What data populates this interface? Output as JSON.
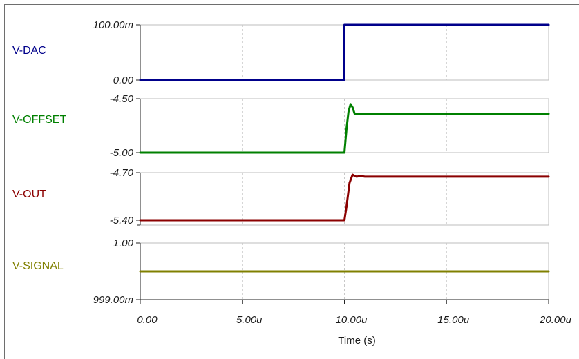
{
  "chart_data": {
    "type": "line",
    "xlabel": "Time (s)",
    "x_ticks": [
      "0.00",
      "5.00u",
      "10.00u",
      "15.00u",
      "20.00u"
    ],
    "xlim": [
      0,
      20
    ],
    "grid": true,
    "panels": [
      {
        "name": "V-DAC",
        "color": "#00008b",
        "y_ticks": [
          "100.00m",
          "0.00"
        ],
        "ylim": [
          0,
          100
        ],
        "x": [
          0,
          10,
          10,
          20
        ],
        "y": [
          0,
          0,
          100,
          100
        ]
      },
      {
        "name": "V-OFFSET",
        "color": "#008000",
        "y_ticks": [
          "-4.50",
          "-5.00"
        ],
        "ylim": [
          -5.0,
          -4.5
        ],
        "x": [
          0,
          10.0,
          10.1,
          10.2,
          10.3,
          10.4,
          10.5,
          10.7,
          20
        ],
        "y": [
          -5.0,
          -5.0,
          -4.78,
          -4.62,
          -4.55,
          -4.58,
          -4.64,
          -4.64,
          -4.64
        ]
      },
      {
        "name": "V-OUT",
        "color": "#8b0000",
        "y_ticks": [
          "-4.70",
          "-5.40"
        ],
        "ylim": [
          -5.4,
          -4.7
        ],
        "x": [
          0,
          10.0,
          10.1,
          10.25,
          10.4,
          10.5,
          10.6,
          10.8,
          11.0,
          20
        ],
        "y": [
          -5.4,
          -5.4,
          -5.2,
          -4.85,
          -4.73,
          -4.75,
          -4.76,
          -4.75,
          -4.76,
          -4.76
        ]
      },
      {
        "name": "V-SIGNAL",
        "color": "#808000",
        "y_ticks": [
          "1.00",
          "999.00m"
        ],
        "ylim": [
          0.999,
          1.0
        ],
        "x": [
          0,
          20
        ],
        "y": [
          0.9995,
          0.9995
        ]
      }
    ]
  }
}
